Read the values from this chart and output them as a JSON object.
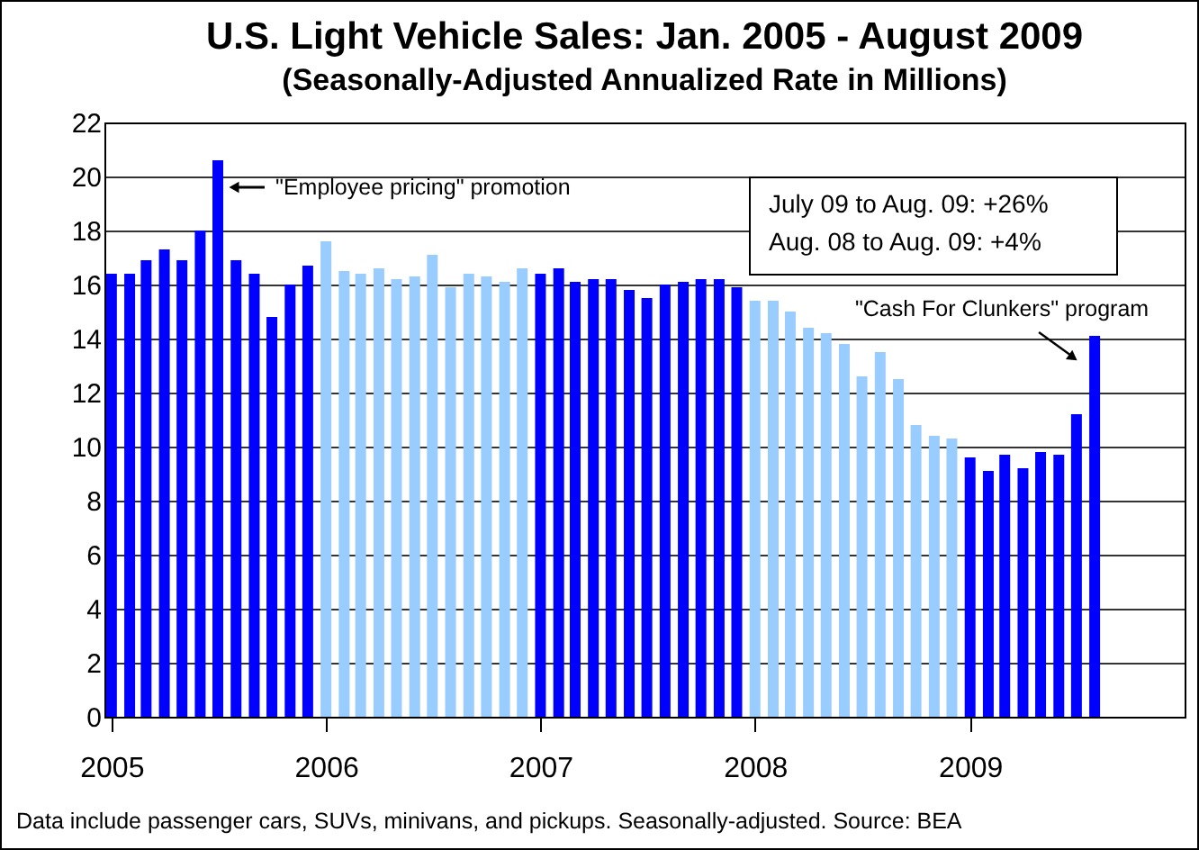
{
  "chart_data": {
    "type": "bar",
    "title": "U.S. Light Vehicle Sales: Jan. 2005 - August 2009",
    "subtitle": "(Seasonally-Adjusted Annualized Rate in Millions)",
    "x": [
      "2005-01",
      "2005-02",
      "2005-03",
      "2005-04",
      "2005-05",
      "2005-06",
      "2005-07",
      "2005-08",
      "2005-09",
      "2005-10",
      "2005-11",
      "2005-12",
      "2006-01",
      "2006-02",
      "2006-03",
      "2006-04",
      "2006-05",
      "2006-06",
      "2006-07",
      "2006-08",
      "2006-09",
      "2006-10",
      "2006-11",
      "2006-12",
      "2007-01",
      "2007-02",
      "2007-03",
      "2007-04",
      "2007-05",
      "2007-06",
      "2007-07",
      "2007-08",
      "2007-09",
      "2007-10",
      "2007-11",
      "2007-12",
      "2008-01",
      "2008-02",
      "2008-03",
      "2008-04",
      "2008-05",
      "2008-06",
      "2008-07",
      "2008-08",
      "2008-09",
      "2008-10",
      "2008-11",
      "2008-12",
      "2009-01",
      "2009-02",
      "2009-03",
      "2009-04",
      "2009-05",
      "2009-06",
      "2009-07",
      "2009-08"
    ],
    "values": [
      16.4,
      16.4,
      16.9,
      17.3,
      16.9,
      18.0,
      20.6,
      16.9,
      16.4,
      14.8,
      16.0,
      16.7,
      17.6,
      16.5,
      16.4,
      16.6,
      16.2,
      16.3,
      17.1,
      15.9,
      16.4,
      16.3,
      16.1,
      16.6,
      16.4,
      16.6,
      16.1,
      16.2,
      16.2,
      15.8,
      15.5,
      16.0,
      16.1,
      16.2,
      16.2,
      15.9,
      15.4,
      15.4,
      15.0,
      14.4,
      14.2,
      13.8,
      12.6,
      13.5,
      12.5,
      10.8,
      10.4,
      10.3,
      9.6,
      9.1,
      9.7,
      9.2,
      9.8,
      9.7,
      11.2,
      14.1
    ],
    "colors": [
      "#0000ff",
      "#0000ff",
      "#0000ff",
      "#0000ff",
      "#0000ff",
      "#0000ff",
      "#0000ff",
      "#0000ff",
      "#0000ff",
      "#0000ff",
      "#0000ff",
      "#0000ff",
      "#99ccff",
      "#99ccff",
      "#99ccff",
      "#99ccff",
      "#99ccff",
      "#99ccff",
      "#99ccff",
      "#99ccff",
      "#99ccff",
      "#99ccff",
      "#99ccff",
      "#99ccff",
      "#0000ff",
      "#0000ff",
      "#0000ff",
      "#0000ff",
      "#0000ff",
      "#0000ff",
      "#0000ff",
      "#0000ff",
      "#0000ff",
      "#0000ff",
      "#0000ff",
      "#0000ff",
      "#99ccff",
      "#99ccff",
      "#99ccff",
      "#99ccff",
      "#99ccff",
      "#99ccff",
      "#99ccff",
      "#99ccff",
      "#99ccff",
      "#99ccff",
      "#99ccff",
      "#99ccff",
      "#0000ff",
      "#0000ff",
      "#0000ff",
      "#0000ff",
      "#0000ff",
      "#0000ff",
      "#0000ff",
      "#0000ff"
    ],
    "xlim": [
      "2004-12-20",
      "2010-01-01"
    ],
    "xticks": [
      {
        "value": "2005-01-01",
        "label": "2005"
      },
      {
        "value": "2006-01-01",
        "label": "2006"
      },
      {
        "value": "2007-01-01",
        "label": "2007"
      },
      {
        "value": "2008-01-01",
        "label": "2008"
      },
      {
        "value": "2009-01-01",
        "label": "2009"
      }
    ],
    "ylim": [
      0,
      22
    ],
    "yticks": [
      0,
      2,
      4,
      6,
      8,
      10,
      12,
      14,
      16,
      18,
      20,
      22
    ],
    "grid": "y",
    "annotations": [
      {
        "text": "\"Employee pricing\" promotion",
        "x": "2005-07",
        "y": 19.6
      },
      {
        "text": "\"Cash For Clunkers\" program",
        "x": "2009-08",
        "y": 14.1
      },
      "July 09 to Aug. 09: +26%",
      "Aug. 08 to Aug. 09: +4%",
      "Data include passenger cars, SUVs, minivans, and pickups.  Seasonally-adjusted.  Source: BEA"
    ]
  }
}
